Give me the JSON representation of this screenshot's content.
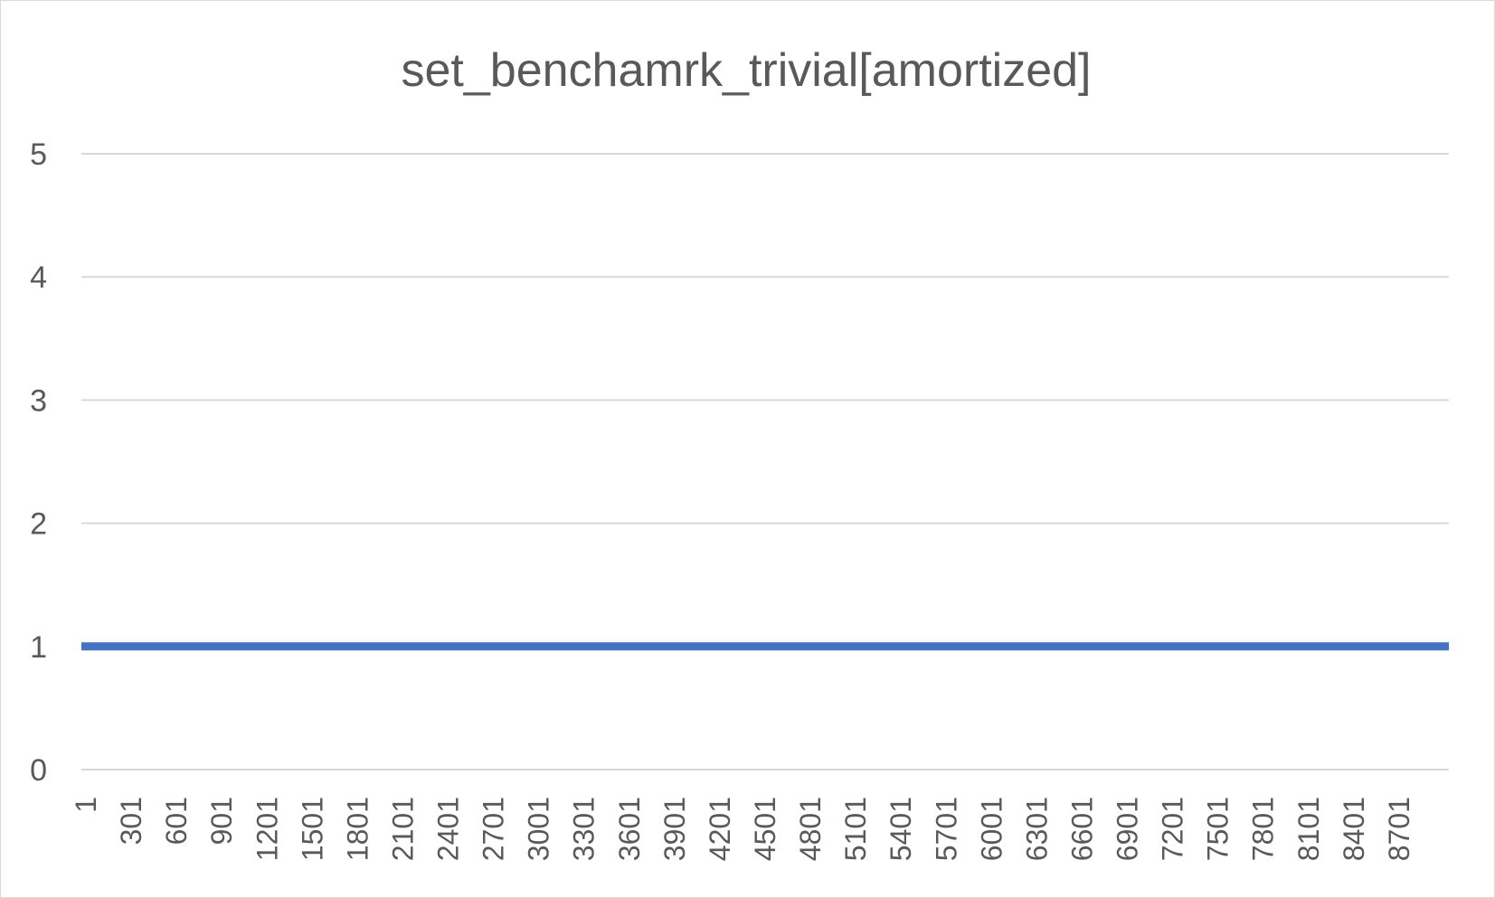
{
  "chart_data": {
    "type": "line",
    "title": "set_benchamrk_trivial[amortized]",
    "xlabel": "",
    "ylabel": "",
    "ylim": [
      0,
      5
    ],
    "y_ticks": [
      "0",
      "1",
      "2",
      "3",
      "4",
      "5"
    ],
    "x_ticks": [
      "1",
      "301",
      "601",
      "901",
      "1201",
      "1501",
      "1801",
      "2101",
      "2401",
      "2701",
      "3001",
      "3301",
      "3601",
      "3901",
      "4201",
      "4501",
      "4801",
      "5101",
      "5401",
      "5701",
      "6001",
      "6301",
      "6601",
      "6901",
      "7201",
      "7501",
      "7801",
      "8101",
      "8401",
      "8701"
    ],
    "xlim": [
      1,
      9000
    ],
    "grid": true,
    "legend": "none",
    "series": [
      {
        "color": "#4472c4",
        "x": [
          1,
          9000
        ],
        "values": [
          1,
          1
        ]
      }
    ]
  }
}
